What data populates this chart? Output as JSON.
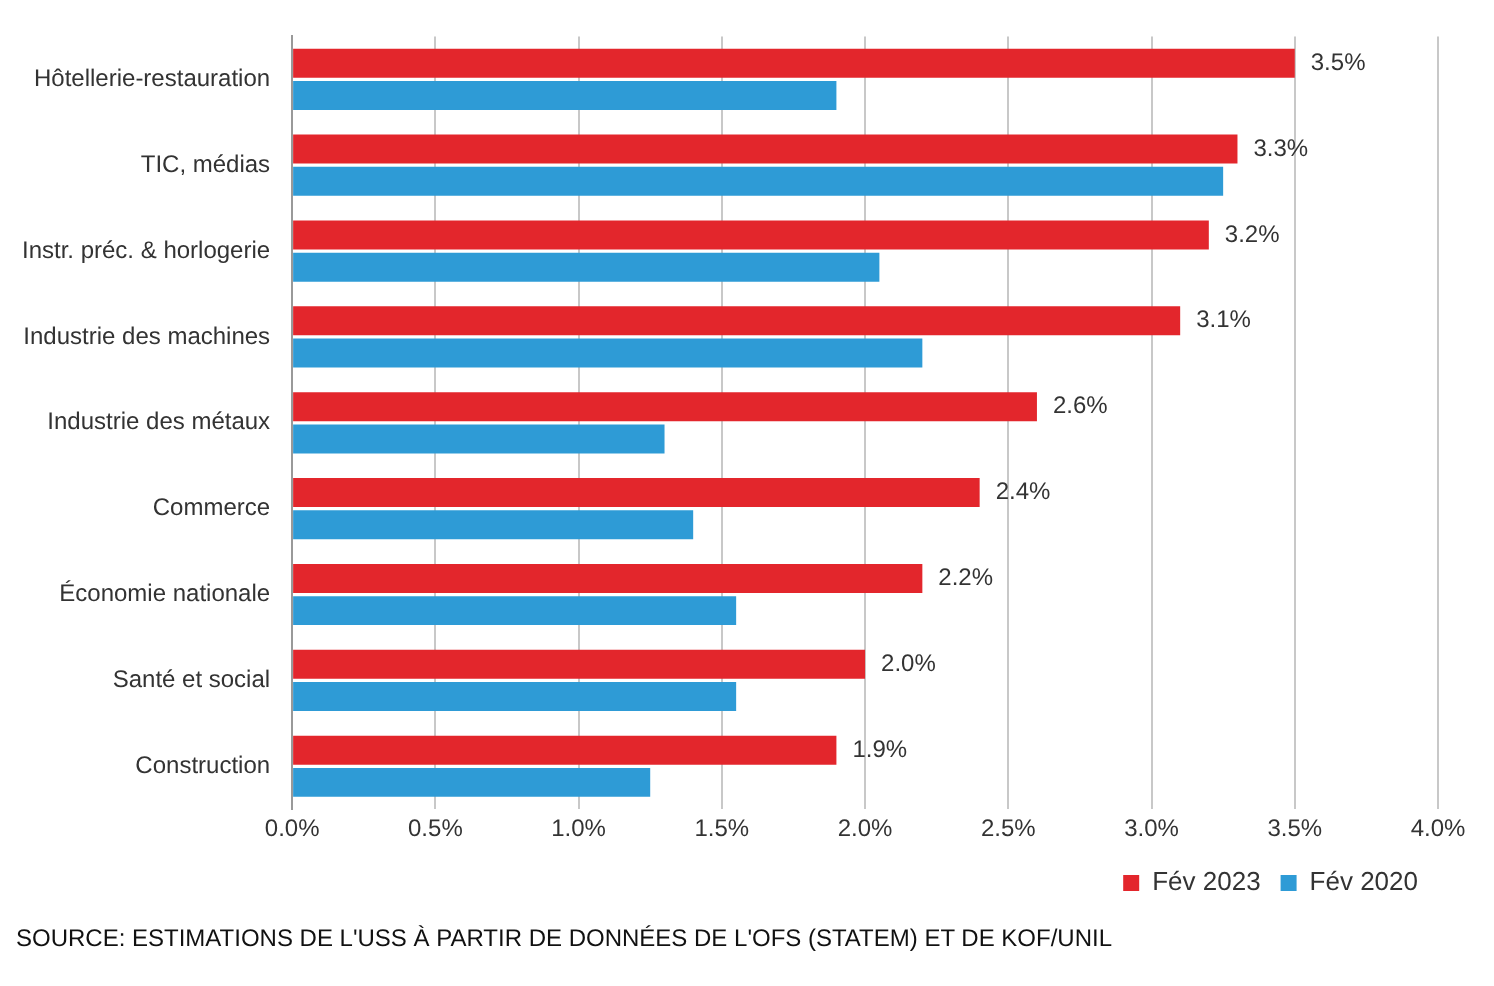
{
  "chart_data": {
    "type": "bar",
    "orientation": "horizontal",
    "categories": [
      "Hôtellerie-restauration",
      "TIC, médias",
      "Instr. préc. & horlogerie",
      "Industrie des machines",
      "Industrie des métaux",
      "Commerce",
      "Économie nationale",
      "Santé et social",
      "Construction"
    ],
    "series": [
      {
        "name": "Fév 2023",
        "color": "#e3262c",
        "values": [
          3.5,
          3.3,
          3.2,
          3.1,
          2.6,
          2.4,
          2.2,
          2.0,
          1.9
        ],
        "value_labels": [
          "3.5%",
          "3.3%",
          "3.2%",
          "3.1%",
          "2.6%",
          "2.4%",
          "2.2%",
          "2.0%",
          "1.9%"
        ]
      },
      {
        "name": "Fév 2020",
        "color": "#2e9bd6",
        "values": [
          1.9,
          3.25,
          2.05,
          2.2,
          1.3,
          1.4,
          1.55,
          1.55,
          1.25
        ]
      }
    ],
    "xlim": [
      0,
      4
    ],
    "xticks": [
      {
        "value": 0,
        "label": "0.0%"
      },
      {
        "value": 0.5,
        "label": "0.5%"
      },
      {
        "value": 1,
        "label": "1.0%"
      },
      {
        "value": 1.5,
        "label": "1.5%"
      },
      {
        "value": 2,
        "label": "2.0%"
      },
      {
        "value": 2.5,
        "label": "2.5%"
      },
      {
        "value": 3,
        "label": "3.0%"
      },
      {
        "value": 3.5,
        "label": "3.5%"
      },
      {
        "value": 4,
        "label": "4.0%"
      }
    ],
    "grid": "x",
    "legend": "bottom right",
    "annotations": [
      "SOURCE: ESTIMATIONS DE L'USS À PARTIR DE DONNÉES DE L'OFS (STATEM) ET DE KOF/UNIL"
    ]
  }
}
